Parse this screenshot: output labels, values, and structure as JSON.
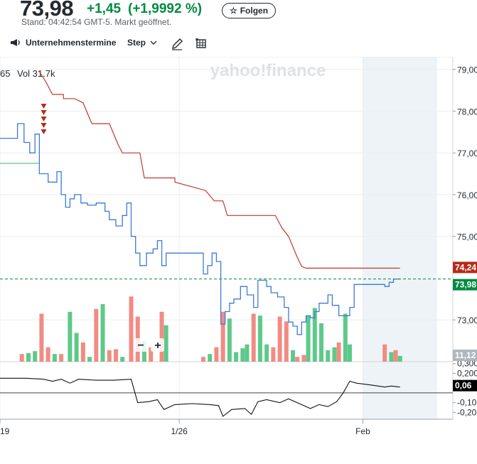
{
  "quote": {
    "price": "73,98",
    "change": "+1,45",
    "change_pct": "(+1,9992 %)",
    "market_time": "Stand: 04:42:54 GMT-5. Markt geöffnet.",
    "follow_label": "Folgen"
  },
  "toolbar": {
    "events_label": "Unternehmenstermine",
    "events_icon": "megaphone-icon",
    "chart_type_label": "Step",
    "draw_icon": "pencil-icon",
    "table_icon": "table-icon"
  },
  "legend_prefix": "65",
  "volume_text": "Vol 31.7k",
  "watermark": "yahoo!finance",
  "zoom_minus": "−",
  "zoom_plus": "+",
  "colors": {
    "price_line": "#3d7ad6",
    "trail_line": "#c0392b",
    "up_volume": "#5ec98a",
    "down_volume": "#f08c84",
    "current_price_badge": "#008a42",
    "trail_badge": "#b32d1a",
    "volume_badge": "#b0b6bd",
    "osc_badge": "#000000",
    "shaded_region": "#eef3f7"
  },
  "chart_data": {
    "type": "line",
    "y_axis_ticks": [
      "79,00",
      "78,00",
      "77,00",
      "76,00",
      "75,00",
      "73,00"
    ],
    "y_range": [
      72.0,
      79.3
    ],
    "x_range": [
      0,
      100
    ],
    "x_ticks": [
      {
        "label": "19",
        "x": 0
      },
      {
        "label": "1/26",
        "x": 41
      },
      {
        "label": "Feb",
        "x": 83
      }
    ],
    "current_price_label": "73,98",
    "current_price": 73.98,
    "trail_label": "74,24",
    "volume_label": "11,12",
    "osc_ticks": [
      "0,300",
      "0,200",
      "0,10",
      "-0,10",
      "-0,20"
    ],
    "osc_range": [
      -0.27,
      0.32
    ],
    "osc_value_label": "0,06",
    "shaded_from_x": 83,
    "series": [
      {
        "key": "price",
        "points": [
          [
            0,
            77.35
          ],
          [
            4,
            77.35
          ],
          [
            4,
            77.7
          ],
          [
            5.5,
            77.7
          ],
          [
            5.5,
            77.25
          ],
          [
            6.8,
            77.25
          ],
          [
            6.8,
            77.0
          ],
          [
            8,
            77.0
          ],
          [
            8,
            77.45
          ],
          [
            9,
            77.45
          ],
          [
            9,
            76.5
          ],
          [
            11,
            76.5
          ],
          [
            11,
            76.3
          ],
          [
            13,
            76.3
          ],
          [
            13,
            76.55
          ],
          [
            14,
            76.55
          ],
          [
            14,
            76.0
          ],
          [
            15,
            76.0
          ],
          [
            15,
            75.7
          ],
          [
            16,
            75.7
          ],
          [
            16,
            75.9
          ],
          [
            17,
            75.9
          ],
          [
            17,
            76.0
          ],
          [
            18.5,
            76.0
          ],
          [
            18.5,
            75.8
          ],
          [
            20,
            75.8
          ],
          [
            20,
            75.75
          ],
          [
            22,
            75.75
          ],
          [
            22,
            75.8
          ],
          [
            24,
            75.8
          ],
          [
            24,
            75.6
          ],
          [
            25,
            75.6
          ],
          [
            25,
            75.4
          ],
          [
            26.5,
            75.4
          ],
          [
            26.5,
            75.25
          ],
          [
            28,
            75.25
          ],
          [
            28,
            75.5
          ],
          [
            29,
            75.5
          ],
          [
            29,
            75.8
          ],
          [
            30,
            75.8
          ],
          [
            30,
            75.0
          ],
          [
            31,
            75.0
          ],
          [
            31,
            74.6
          ],
          [
            32,
            74.6
          ],
          [
            32,
            74.3
          ],
          [
            33.5,
            74.3
          ],
          [
            33.5,
            74.6
          ],
          [
            35,
            74.6
          ],
          [
            35,
            74.7
          ],
          [
            36,
            74.7
          ],
          [
            36,
            74.9
          ],
          [
            37,
            74.9
          ],
          [
            37,
            74.3
          ],
          [
            38,
            74.3
          ],
          [
            38,
            74.6
          ],
          [
            46.5,
            74.6
          ],
          [
            46.5,
            74.1
          ],
          [
            47.5,
            74.1
          ],
          [
            47.5,
            74.3
          ],
          [
            48.5,
            74.3
          ],
          [
            48.5,
            74.6
          ],
          [
            49.5,
            74.6
          ],
          [
            49.5,
            74.4
          ],
          [
            50.5,
            74.4
          ],
          [
            50.5,
            72.9
          ],
          [
            51.5,
            72.9
          ],
          [
            51.5,
            73.2
          ],
          [
            52.5,
            73.2
          ],
          [
            52.5,
            73.4
          ],
          [
            53.5,
            73.4
          ],
          [
            53.5,
            73.5
          ],
          [
            55,
            73.5
          ],
          [
            55,
            73.8
          ],
          [
            56.5,
            73.8
          ],
          [
            56.5,
            73.6
          ],
          [
            58,
            73.6
          ],
          [
            58,
            73.3
          ],
          [
            59,
            73.3
          ],
          [
            59,
            73.95
          ],
          [
            61,
            73.95
          ],
          [
            61,
            73.8
          ],
          [
            62,
            73.8
          ],
          [
            62,
            73.65
          ],
          [
            63.5,
            73.65
          ],
          [
            63.5,
            73.55
          ],
          [
            65,
            73.55
          ],
          [
            65,
            73.3
          ],
          [
            66,
            73.3
          ],
          [
            66,
            72.95
          ],
          [
            67,
            72.95
          ],
          [
            67,
            72.85
          ],
          [
            68,
            72.85
          ],
          [
            68,
            72.65
          ],
          [
            69,
            72.65
          ],
          [
            69,
            72.95
          ],
          [
            70,
            72.95
          ],
          [
            70,
            73.1
          ],
          [
            71,
            73.1
          ],
          [
            71,
            73.05
          ],
          [
            72,
            73.05
          ],
          [
            72,
            73.2
          ],
          [
            73,
            73.2
          ],
          [
            73,
            73.4
          ],
          [
            75,
            73.4
          ],
          [
            75,
            73.6
          ],
          [
            76,
            73.6
          ],
          [
            76,
            73.35
          ],
          [
            77.5,
            73.35
          ],
          [
            77.5,
            73.1
          ],
          [
            79,
            73.1
          ],
          [
            79,
            73.1
          ],
          [
            80,
            73.1
          ],
          [
            80,
            73.3
          ],
          [
            81,
            73.3
          ],
          [
            81,
            73.85
          ],
          [
            88,
            73.85
          ],
          [
            88,
            73.8
          ],
          [
            89,
            73.8
          ],
          [
            89,
            73.9
          ],
          [
            90,
            73.9
          ],
          [
            90,
            73.98
          ],
          [
            91.5,
            73.98
          ]
        ]
      },
      {
        "key": "trail",
        "points": [
          [
            9,
            78.95
          ],
          [
            10.5,
            78.7
          ],
          [
            12,
            78.4
          ],
          [
            14.5,
            78.4
          ],
          [
            14.5,
            78.3
          ],
          [
            17,
            78.3
          ],
          [
            19,
            78.2
          ],
          [
            21,
            77.7
          ],
          [
            25,
            77.7
          ],
          [
            27,
            77.2
          ],
          [
            28,
            77.0
          ],
          [
            32,
            77.0
          ],
          [
            33,
            76.4
          ],
          [
            40,
            76.4
          ],
          [
            40,
            76.3
          ],
          [
            47,
            76.1
          ],
          [
            49,
            75.85
          ],
          [
            51,
            75.85
          ],
          [
            52,
            75.5
          ],
          [
            63,
            75.5
          ],
          [
            64.5,
            75.2
          ],
          [
            66,
            75.0
          ],
          [
            68,
            74.5
          ],
          [
            69,
            74.28
          ],
          [
            70,
            74.24
          ],
          [
            91.5,
            74.24
          ]
        ]
      },
      {
        "key": "baseline_green",
        "points": [
          [
            0,
            76.75
          ],
          [
            9,
            76.75
          ]
        ]
      }
    ],
    "volume": [
      [
        5,
        8,
        "down"
      ],
      [
        6.5,
        9,
        "up"
      ],
      [
        8,
        11,
        "up"
      ],
      [
        9.5,
        50,
        "down"
      ],
      [
        11,
        15,
        "down"
      ],
      [
        12.5,
        8,
        "up"
      ],
      [
        14,
        8,
        "down"
      ],
      [
        16,
        52,
        "up"
      ],
      [
        17.5,
        30,
        "up"
      ],
      [
        19,
        20,
        "down"
      ],
      [
        20.5,
        5,
        "up"
      ],
      [
        22,
        55,
        "down"
      ],
      [
        23.5,
        60,
        "up"
      ],
      [
        25,
        12,
        "down"
      ],
      [
        26.5,
        13,
        "down"
      ],
      [
        28,
        5,
        "up"
      ],
      [
        30,
        68,
        "down"
      ],
      [
        31.5,
        47,
        "down"
      ],
      [
        33,
        22,
        "up"
      ],
      [
        34.5,
        15,
        "down"
      ],
      [
        37,
        52,
        "down"
      ],
      [
        38,
        38,
        "up"
      ],
      [
        46.5,
        5,
        "down"
      ],
      [
        48,
        8,
        "up"
      ],
      [
        49.5,
        15,
        "down"
      ],
      [
        51,
        52,
        "down"
      ],
      [
        52.5,
        45,
        "up"
      ],
      [
        54,
        10,
        "up"
      ],
      [
        55.5,
        14,
        "up"
      ],
      [
        56.5,
        18,
        "up"
      ],
      [
        58,
        50,
        "down"
      ],
      [
        59.5,
        48,
        "up"
      ],
      [
        61,
        18,
        "up"
      ],
      [
        62.5,
        15,
        "down"
      ],
      [
        64,
        47,
        "down"
      ],
      [
        65.5,
        42,
        "down"
      ],
      [
        67,
        12,
        "up"
      ],
      [
        68,
        5,
        "down"
      ],
      [
        69.5,
        7,
        "down"
      ],
      [
        70.5,
        48,
        "up"
      ],
      [
        72,
        56,
        "up"
      ],
      [
        73.5,
        40,
        "up"
      ],
      [
        75,
        12,
        "up"
      ],
      [
        76.5,
        15,
        "up"
      ],
      [
        77.5,
        20,
        "down"
      ],
      [
        79,
        50,
        "up"
      ],
      [
        80,
        18,
        "up"
      ],
      [
        88,
        18,
        "down"
      ],
      [
        89.5,
        10,
        "up"
      ],
      [
        90.5,
        12,
        "down"
      ],
      [
        91.5,
        6,
        "up"
      ]
    ],
    "oscillator": [
      [
        0,
        0.15
      ],
      [
        6,
        0.15
      ],
      [
        10,
        0.14
      ],
      [
        12,
        0.12
      ],
      [
        14,
        0.14
      ],
      [
        16,
        0.1
      ],
      [
        18,
        0.14
      ],
      [
        22,
        0.13
      ],
      [
        26,
        0.13
      ],
      [
        30,
        0.14
      ],
      [
        31.5,
        -0.1
      ],
      [
        34,
        -0.09
      ],
      [
        36,
        -0.07
      ],
      [
        37.5,
        -0.17
      ],
      [
        40,
        -0.12
      ],
      [
        44,
        -0.11
      ],
      [
        48,
        -0.12
      ],
      [
        50,
        -0.13
      ],
      [
        51,
        -0.24
      ],
      [
        53,
        -0.17
      ],
      [
        56,
        -0.16
      ],
      [
        57.5,
        -0.22
      ],
      [
        59,
        -0.09
      ],
      [
        61,
        -0.07
      ],
      [
        64,
        -0.1
      ],
      [
        66,
        -0.06
      ],
      [
        68,
        -0.1
      ],
      [
        71,
        -0.16
      ],
      [
        73,
        -0.12
      ],
      [
        75,
        -0.14
      ],
      [
        77,
        -0.09
      ],
      [
        78.5,
        0.0
      ],
      [
        80,
        0.12
      ],
      [
        81.5,
        0.1
      ],
      [
        85,
        0.08
      ],
      [
        88,
        0.06
      ],
      [
        89.5,
        0.07
      ],
      [
        91.5,
        0.06
      ]
    ]
  }
}
